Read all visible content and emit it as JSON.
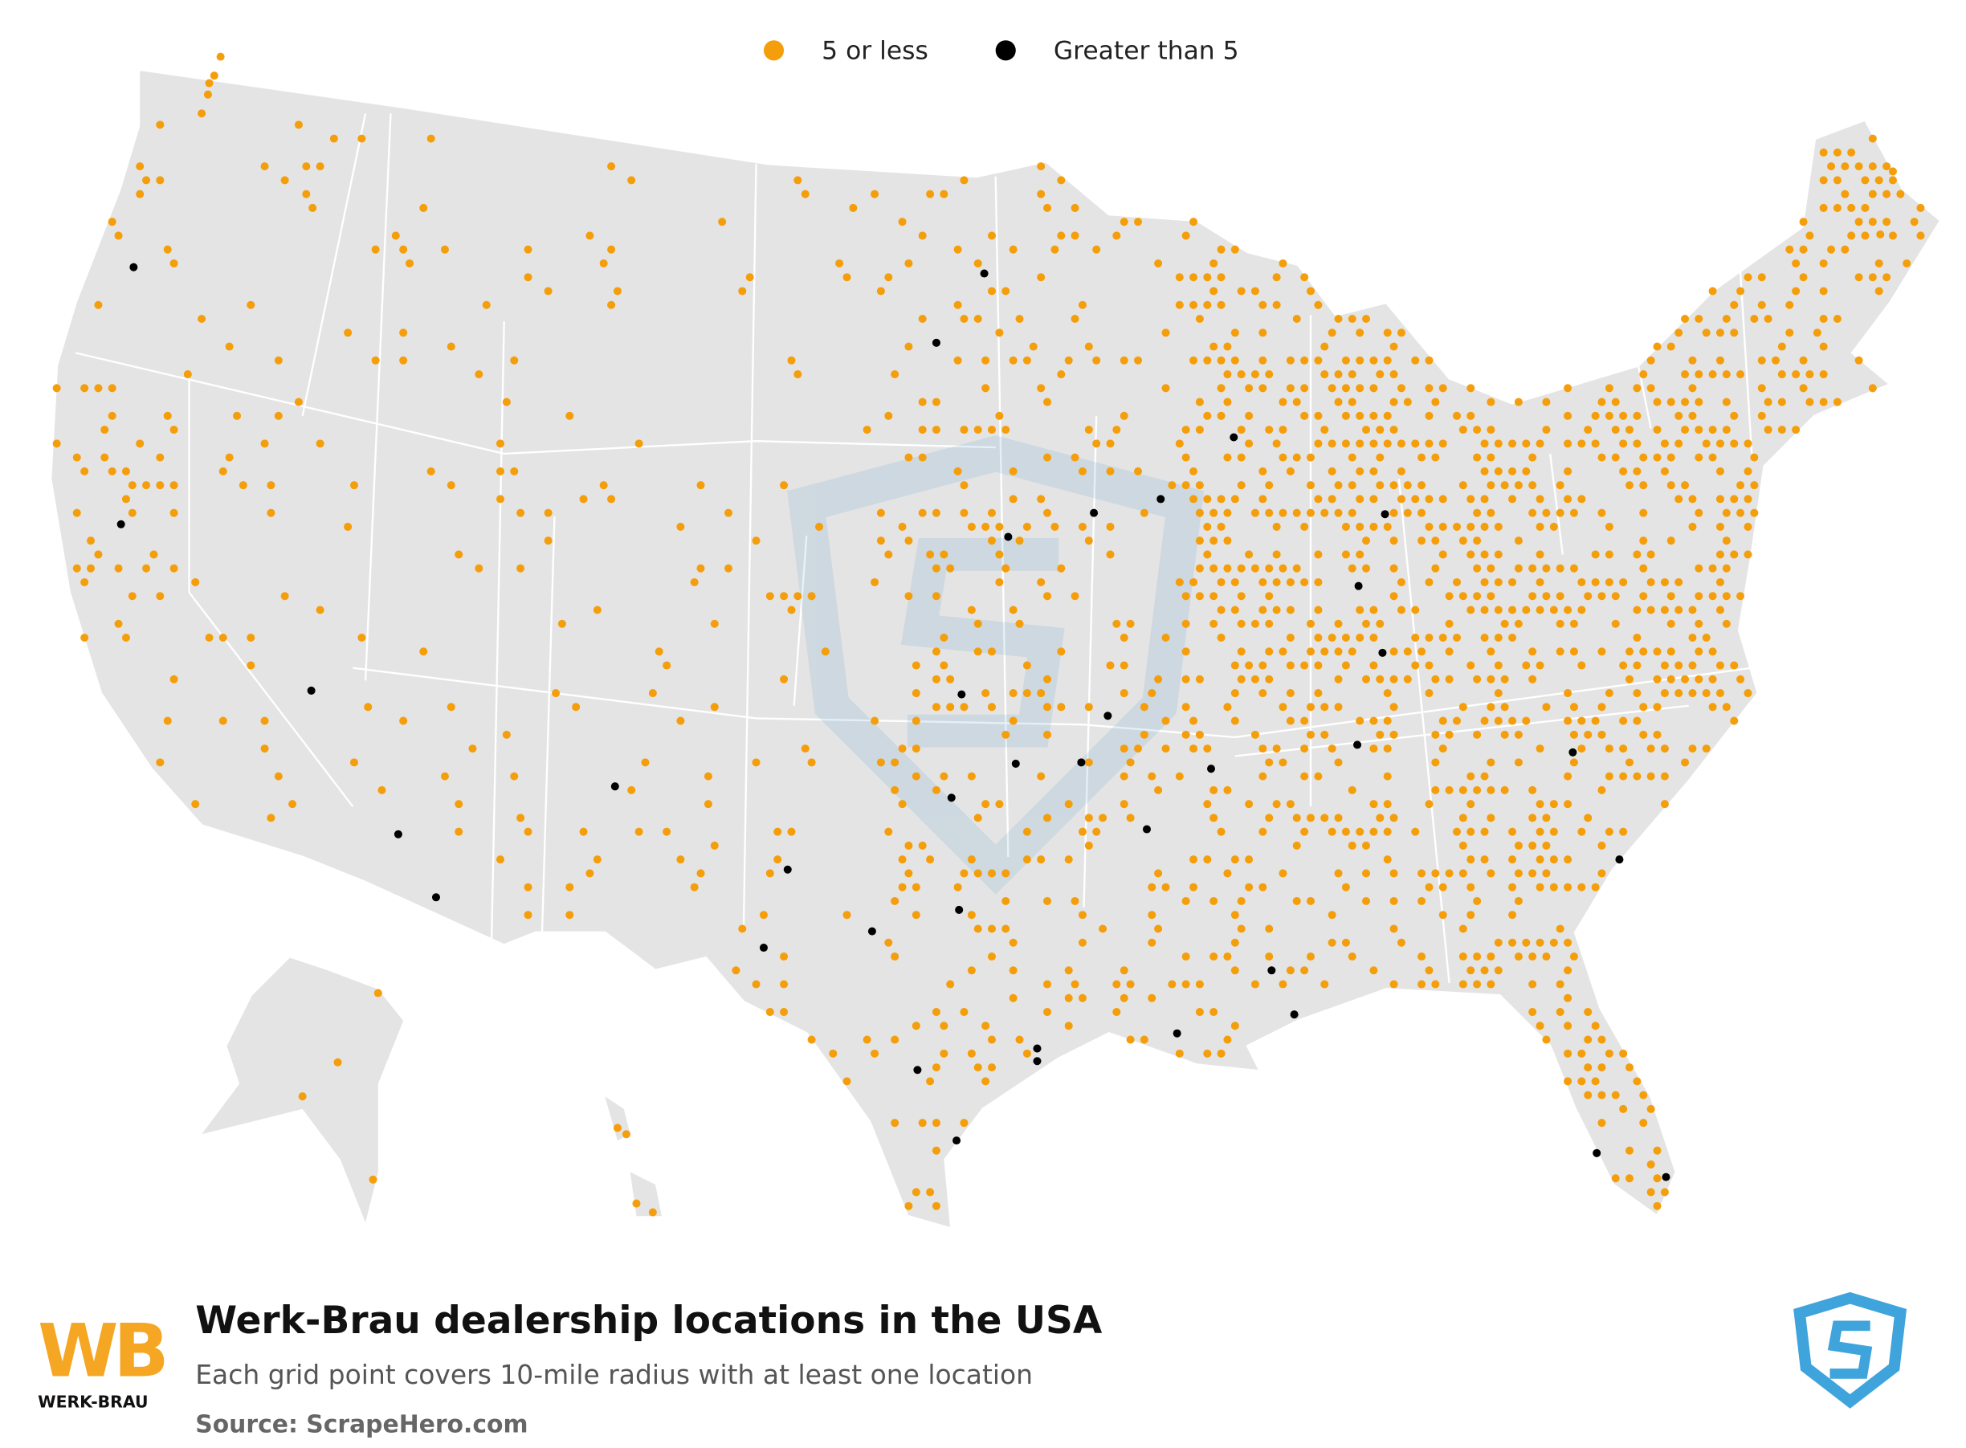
{
  "legend": {
    "items": [
      {
        "label": "5 or less",
        "color": "#f59e0b"
      },
      {
        "label": "Greater than 5",
        "color": "#000000"
      }
    ]
  },
  "footer": {
    "title": "Werk-Brau dealership locations in the USA",
    "subtitle": "Each grid point covers 10-mile radius with at least one location",
    "source": "Source: ScrapeHero.com"
  },
  "logo": {
    "mark": "WB",
    "name": "WERK-BRAU"
  }
}
